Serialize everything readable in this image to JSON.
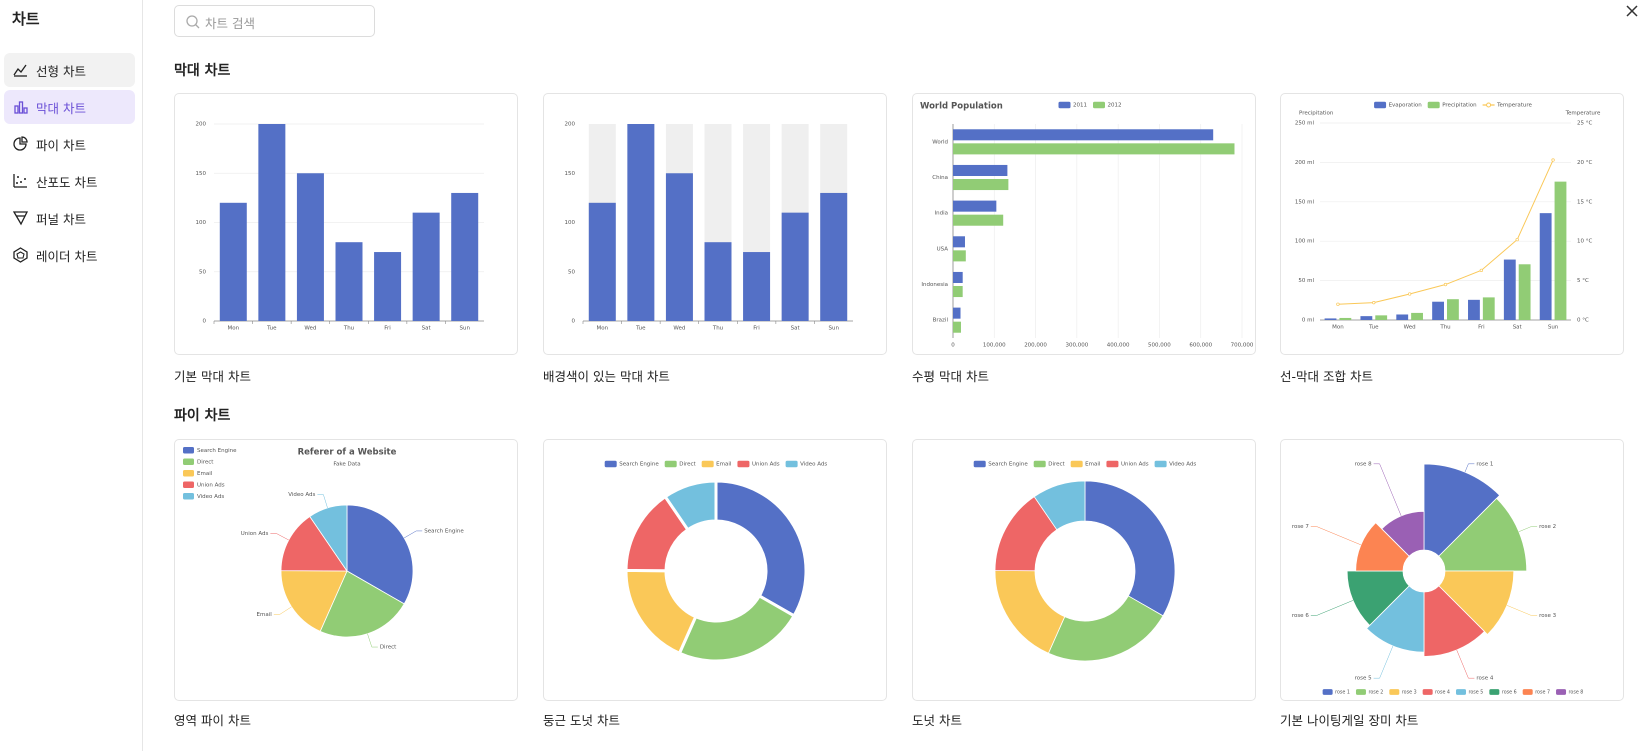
{
  "sidebar": {
    "title": "차트",
    "items": [
      "선형 차트",
      "막대 차트",
      "파이 차트",
      "산포도 차트",
      "퍼널 차트",
      "레이더 차트"
    ],
    "active": 1
  },
  "search": {
    "placeholder": "차트 검색"
  },
  "sections": [
    {
      "title": "막대 차트",
      "cards": [
        {
          "label": "기본 막대 차트",
          "chart": {
            "type": "bar",
            "categories": [
              "Mon",
              "Tue",
              "Wed",
              "Thu",
              "Fri",
              "Sat",
              "Sun"
            ],
            "values": [
              120,
              200,
              150,
              80,
              70,
              110,
              130
            ],
            "color": "#5470c6",
            "ylim": [
              0,
              200
            ],
            "yticks": [
              0,
              50,
              100,
              150,
              200
            ],
            "grid": true
          }
        },
        {
          "label": "배경색이 있는 막대 차트",
          "chart": {
            "type": "bar",
            "show_background": true,
            "categories": [
              "Mon",
              "Tue",
              "Wed",
              "Thu",
              "Fri",
              "Sat",
              "Sun"
            ],
            "values": [
              120,
              200,
              150,
              80,
              70,
              110,
              130
            ],
            "color": "#5470c6",
            "ylim": [
              0,
              200
            ],
            "yticks": [
              0,
              50,
              100,
              150,
              200
            ],
            "grid": false
          }
        },
        {
          "label": "수평 막대 차트",
          "chart": {
            "type": "hbar",
            "title": "World Population",
            "categories": [
              "Brazil",
              "Indonesia",
              "USA",
              "India",
              "China",
              "World"
            ],
            "series": [
              {
                "name": "2011",
                "color": "#5470c6",
                "values": [
                  18203,
                  23489,
                  29034,
                  104970,
                  131744,
                  630230
                ]
              },
              {
                "name": "2012",
                "color": "#91cc75",
                "values": [
                  19325,
                  23438,
                  31000,
                  121594,
                  134141,
                  681807
                ]
              }
            ],
            "xlim": [
              0,
              700000
            ],
            "xticks": [
              0,
              {
                "value": 100000,
                "label": "100,000"
              },
              {
                "value": 200000,
                "label": "200,000"
              },
              {
                "value": 300000,
                "label": "300,000"
              },
              {
                "value": 400000,
                "label": "400,000"
              },
              {
                "value": 500000,
                "label": "500,000"
              },
              {
                "value": 600000,
                "label": "600,000"
              },
              {
                "value": 700000,
                "label": "700,000"
              }
            ],
            "grid": true
          }
        },
        {
          "label": "선-막대 조합 차트",
          "chart": {
            "type": "mixed",
            "categories": [
              "Mon",
              "Tue",
              "Wed",
              "Thu",
              "Fri",
              "Sat",
              "Sun"
            ],
            "y_axis_name": "Precipitation",
            "y2_axis_name": "Temperature",
            "series": [
              {
                "name": "Evaporation",
                "type": "bar",
                "color": "#5470c6",
                "values": [
                  2.0,
                  4.9,
                  7.0,
                  23.2,
                  25.6,
                  76.7,
                  135.6
                ]
              },
              {
                "name": "Precipitation",
                "type": "bar",
                "color": "#91cc75",
                "values": [
                  2.6,
                  5.9,
                  9.0,
                  26.4,
                  28.7,
                  70.7,
                  175.6
                ]
              },
              {
                "name": "Temperature",
                "type": "line",
                "axis": "y2",
                "color": "#fac858",
                "values": [
                  2.0,
                  2.2,
                  3.3,
                  4.5,
                  6.3,
                  10.2,
                  20.3
                ]
              }
            ],
            "ylim": [
              0,
              250
            ],
            "yticks": [
              {
                "value": 0,
                "label": "0 ml"
              },
              {
                "value": 50,
                "label": "50 ml"
              },
              {
                "value": 100,
                "label": "100 ml"
              },
              {
                "value": 150,
                "label": "150 ml"
              },
              {
                "value": 200,
                "label": "200 ml"
              },
              {
                "value": 250,
                "label": "250 ml"
              }
            ],
            "y2lim": [
              0,
              25
            ],
            "y2ticks": [
              {
                "value": 0,
                "label": "0 °C"
              },
              {
                "value": 5,
                "label": "5 °C"
              },
              {
                "value": 10,
                "label": "10 °C"
              },
              {
                "value": 15,
                "label": "15 °C"
              },
              {
                "value": 20,
                "label": "20 °C"
              },
              {
                "value": 25,
                "label": "25 °C"
              }
            ],
            "grid": true
          }
        }
      ]
    },
    {
      "title": "파이 차트",
      "cards": [
        {
          "label": "영역 파이 차트",
          "chart": {
            "type": "pie",
            "title": "Referer of a Website",
            "subtitle": "Fake Data",
            "categories": [
              "Search Engine",
              "Direct",
              "Email",
              "Union Ads",
              "Video Ads"
            ],
            "values": [
              1048,
              735,
              580,
              484,
              300
            ],
            "colors": [
              "#5470c6",
              "#91cc75",
              "#fac858",
              "#ee6666",
              "#73c0de"
            ],
            "legend": "left",
            "labels": true
          }
        },
        {
          "label": "둥근 도넛 차트",
          "chart": {
            "type": "donut",
            "rounded": true,
            "categories": [
              "Search Engine",
              "Direct",
              "Email",
              "Union Ads",
              "Video Ads"
            ],
            "values": [
              1048,
              735,
              580,
              484,
              300
            ],
            "colors": [
              "#5470c6",
              "#91cc75",
              "#fac858",
              "#ee6666",
              "#73c0de"
            ],
            "legend": "top",
            "labels": false
          }
        },
        {
          "label": "도넛 차트",
          "chart": {
            "type": "donut",
            "rounded": false,
            "categories": [
              "Search Engine",
              "Direct",
              "Email",
              "Union Ads",
              "Video Ads"
            ],
            "values": [
              1048,
              735,
              580,
              484,
              300
            ],
            "colors": [
              "#5470c6",
              "#91cc75",
              "#fac858",
              "#ee6666",
              "#73c0de"
            ],
            "legend": "top",
            "labels": false
          }
        },
        {
          "label": "기본 나이팅게일 장미 차트",
          "chart": {
            "type": "rose",
            "categories": [
              "rose 1",
              "rose 2",
              "rose 3",
              "rose 4",
              "rose 5",
              "rose 6",
              "rose 7",
              "rose 8"
            ],
            "values": [
              40,
              38,
              32,
              30,
              28,
              26,
              22,
              18
            ],
            "colors": [
              "#5470c6",
              "#91cc75",
              "#fac858",
              "#ee6666",
              "#73c0de",
              "#3ba272",
              "#fc8452",
              "#9a60b4"
            ],
            "legend": "bottom",
            "labels": true
          }
        }
      ]
    }
  ]
}
